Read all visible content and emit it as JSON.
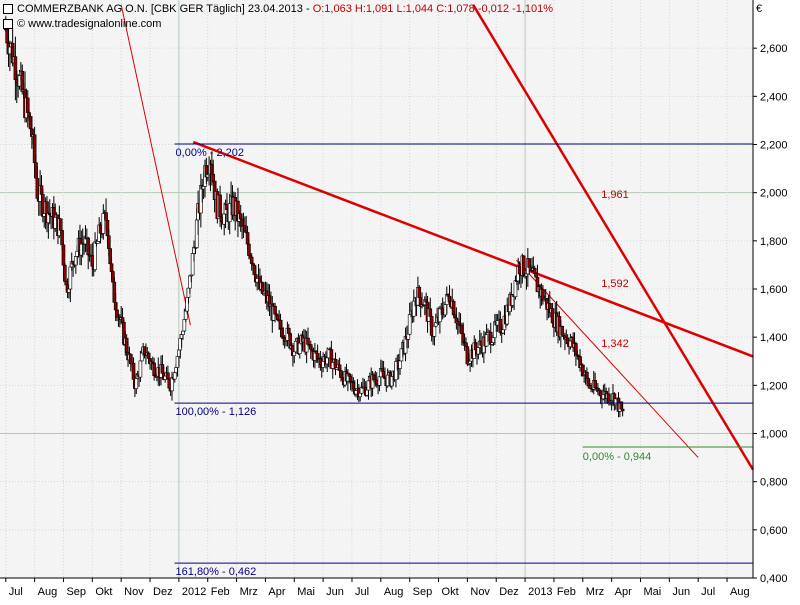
{
  "header": {
    "title_prefix": "COMMERZBANK AG O.N. [CBK GER  Täglich] 23.04.2013 - ",
    "ohlc": "O:1,063 H:1,091 L:1,044",
    "change": "C:1,078 -0,012 -1,101%",
    "copyright": "© www.tradesignalonline.com"
  },
  "colors": {
    "background": "#f4f4f4",
    "grid": "#d7d7d7",
    "fib_line": "#00008b",
    "fib_zero_line": "#2e8b2e",
    "trend_heavy": "#dd0000",
    "trend_light": "#dd0000",
    "up_candle": "#ffffff",
    "down_candle": "#8b0000"
  },
  "chart_data": {
    "type": "candlestick",
    "y_unit": "€",
    "ylim": [
      0.4,
      2.8
    ],
    "y_ticks": [
      "0,400",
      "0,600",
      "0,800",
      "1,000",
      "1,200",
      "1,400",
      "1,600",
      "1,800",
      "2,000",
      "2,200",
      "2,400",
      "2,600"
    ],
    "y_tick_values": [
      0.4,
      0.6,
      0.8,
      1.0,
      1.2,
      1.4,
      1.6,
      1.8,
      2.0,
      2.2,
      2.4,
      2.6
    ],
    "x_ticks": [
      "Jul",
      "Aug",
      "Sep",
      "Okt",
      "Nov",
      "Dez",
      "2012",
      "Feb",
      "Mrz",
      "Apr",
      "Mai",
      "Jun",
      "Jul",
      "Aug",
      "Sep",
      "Okt",
      "Nov",
      "Dez",
      "2013",
      "Feb",
      "Mrz",
      "Apr",
      "Mai",
      "Jun",
      "Jul",
      "Aug"
    ],
    "x_tick_months": [
      0,
      1,
      2,
      3,
      4,
      5,
      6,
      7,
      8,
      9,
      10,
      11,
      12,
      13,
      14,
      15,
      16,
      17,
      18,
      19,
      20,
      21,
      22,
      23,
      24,
      25
    ],
    "x_range_months": [
      -0.2,
      25.9
    ],
    "price_path": [
      [
        0.0,
        2.68
      ],
      [
        0.3,
        2.55
      ],
      [
        0.6,
        2.4
      ],
      [
        0.9,
        2.25
      ],
      [
        1.1,
        2.0
      ],
      [
        1.3,
        1.95
      ],
      [
        1.6,
        1.9
      ],
      [
        1.9,
        1.85
      ],
      [
        2.1,
        1.6
      ],
      [
        2.4,
        1.75
      ],
      [
        2.7,
        1.8
      ],
      [
        3.0,
        1.7
      ],
      [
        3.3,
        1.85
      ],
      [
        3.5,
        1.9
      ],
      [
        3.7,
        1.6
      ],
      [
        4.0,
        1.45
      ],
      [
        4.3,
        1.3
      ],
      [
        4.5,
        1.2
      ],
      [
        4.8,
        1.35
      ],
      [
        5.1,
        1.28
      ],
      [
        5.4,
        1.25
      ],
      [
        5.7,
        1.2
      ],
      [
        6.0,
        1.35
      ],
      [
        6.3,
        1.55
      ],
      [
        6.6,
        1.85
      ],
      [
        6.9,
        2.1
      ],
      [
        7.1,
        2.15
      ],
      [
        7.3,
        1.95
      ],
      [
        7.6,
        1.9
      ],
      [
        7.9,
        1.95
      ],
      [
        8.2,
        1.85
      ],
      [
        8.5,
        1.75
      ],
      [
        8.8,
        1.6
      ],
      [
        9.1,
        1.55
      ],
      [
        9.4,
        1.45
      ],
      [
        9.7,
        1.42
      ],
      [
        10.0,
        1.35
      ],
      [
        10.3,
        1.38
      ],
      [
        10.6,
        1.34
      ],
      [
        10.9,
        1.3
      ],
      [
        11.2,
        1.32
      ],
      [
        11.5,
        1.27
      ],
      [
        11.8,
        1.22
      ],
      [
        12.1,
        1.19
      ],
      [
        12.4,
        1.18
      ],
      [
        12.7,
        1.22
      ],
      [
        13.0,
        1.24
      ],
      [
        13.3,
        1.22
      ],
      [
        13.6,
        1.28
      ],
      [
        13.9,
        1.4
      ],
      [
        14.2,
        1.58
      ],
      [
        14.5,
        1.55
      ],
      [
        14.8,
        1.42
      ],
      [
        15.1,
        1.5
      ],
      [
        15.4,
        1.58
      ],
      [
        15.7,
        1.45
      ],
      [
        16.0,
        1.32
      ],
      [
        16.3,
        1.35
      ],
      [
        16.6,
        1.38
      ],
      [
        16.9,
        1.42
      ],
      [
        17.2,
        1.45
      ],
      [
        17.5,
        1.55
      ],
      [
        17.8,
        1.7
      ],
      [
        18.1,
        1.68
      ],
      [
        18.4,
        1.62
      ],
      [
        18.7,
        1.55
      ],
      [
        19.0,
        1.48
      ],
      [
        19.3,
        1.42
      ],
      [
        19.6,
        1.38
      ],
      [
        19.9,
        1.3
      ],
      [
        20.2,
        1.2
      ],
      [
        20.5,
        1.18
      ],
      [
        20.8,
        1.16
      ],
      [
        21.1,
        1.15
      ],
      [
        21.3,
        1.1
      ],
      [
        21.4,
        1.078
      ]
    ],
    "fib_levels": [
      {
        "value": 2.202,
        "label": "0,00% - 2,202"
      },
      {
        "value": 1.126,
        "label": "100,00% - 1,126"
      },
      {
        "value": 0.462,
        "label": "161,80% - 0,462"
      }
    ],
    "support_line": {
      "value": 0.944,
      "x_start": 20.0,
      "label": "0,00% - 0,944"
    },
    "trend_lines": [
      {
        "x1": 4.0,
        "y1": 2.78,
        "x2": 6.4,
        "y2": 1.45,
        "weight": "thin"
      },
      {
        "x1": 6.5,
        "y1": 2.21,
        "x2": 25.9,
        "y2": 1.32,
        "weight": "heavy",
        "label": "1,592",
        "label_x": 20.5,
        "label_y": 1.592
      },
      {
        "x1": 16.2,
        "y1": 2.78,
        "x2": 25.9,
        "y2": 0.85,
        "weight": "heavy",
        "label": "1,961",
        "label_x": 20.5,
        "label_y": 1.961
      },
      {
        "x1": 17.7,
        "y1": 1.72,
        "x2": 24.0,
        "y2": 0.9,
        "weight": "thin",
        "label": "1,342",
        "label_x": 20.5,
        "label_y": 1.342
      }
    ]
  }
}
